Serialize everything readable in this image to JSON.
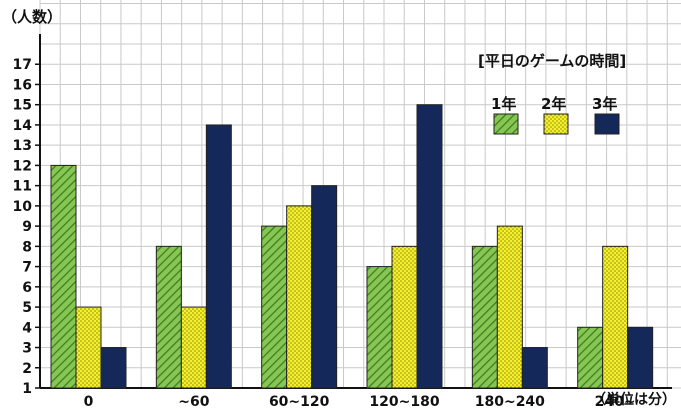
{
  "chart_data": {
    "type": "bar",
    "title": "[平日のゲームの時間]",
    "ylabel": "（人数）",
    "xlabel": "（単位は分）",
    "categories": [
      "0",
      "~60",
      "60~120",
      "120~180",
      "180~240",
      "240~"
    ],
    "series": [
      {
        "name": "1年",
        "color": "#7bc04a",
        "pattern": "diagonal",
        "values": [
          11,
          7,
          8,
          6,
          7,
          3
        ]
      },
      {
        "name": "2年",
        "color": "#f2ee2a",
        "pattern": "dots",
        "values": [
          4,
          4,
          9,
          7,
          8,
          7
        ]
      },
      {
        "name": "3年",
        "color": "#14285a",
        "pattern": "solid",
        "values": [
          2,
          13,
          10,
          14,
          2,
          3
        ]
      }
    ],
    "ylim": [
      1,
      17
    ],
    "yticks": [
      1,
      2,
      3,
      4,
      5,
      6,
      7,
      8,
      9,
      10,
      11,
      12,
      13,
      14,
      15,
      16,
      17
    ],
    "grid": true,
    "legend_position": "top-right"
  }
}
